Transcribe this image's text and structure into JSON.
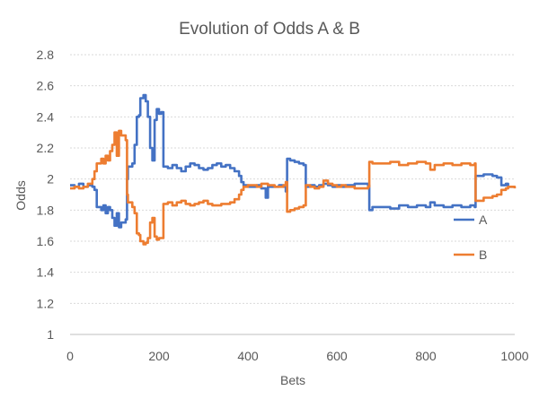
{
  "chart_data": {
    "type": "line",
    "title": "Evolution of Odds A & B",
    "xlabel": "Bets",
    "ylabel": "Odds",
    "xlim": [
      0,
      1000
    ],
    "ylim": [
      1,
      2.8
    ],
    "x_ticks": [
      "0",
      "200",
      "400",
      "600",
      "800",
      "1000"
    ],
    "y_ticks": [
      "1",
      "1.2",
      "1.4",
      "1.6",
      "1.8",
      "2",
      "2.2",
      "2.4",
      "2.6",
      "2.8"
    ],
    "grid": "horizontal dotted",
    "legend_position": "right",
    "series": [
      {
        "name": "A",
        "color": "#4472C4",
        "points": [
          [
            0,
            1.96
          ],
          [
            10,
            1.95
          ],
          [
            20,
            1.97
          ],
          [
            30,
            1.95
          ],
          [
            40,
            1.96
          ],
          [
            50,
            1.95
          ],
          [
            55,
            1.93
          ],
          [
            60,
            1.82
          ],
          [
            70,
            1.8
          ],
          [
            75,
            1.83
          ],
          [
            80,
            1.78
          ],
          [
            85,
            1.82
          ],
          [
            90,
            1.8
          ],
          [
            95,
            1.75
          ],
          [
            100,
            1.7
          ],
          [
            105,
            1.78
          ],
          [
            110,
            1.69
          ],
          [
            115,
            1.72
          ],
          [
            120,
            1.72
          ],
          [
            125,
            1.74
          ],
          [
            128,
            2.0
          ],
          [
            130,
            2.08
          ],
          [
            140,
            2.1
          ],
          [
            145,
            2.22
          ],
          [
            150,
            2.4
          ],
          [
            155,
            2.41
          ],
          [
            158,
            2.52
          ],
          [
            165,
            2.54
          ],
          [
            170,
            2.5
          ],
          [
            175,
            2.4
          ],
          [
            180,
            2.2
          ],
          [
            185,
            2.12
          ],
          [
            190,
            2.38
          ],
          [
            195,
            2.45
          ],
          [
            200,
            2.42
          ],
          [
            205,
            2.43
          ],
          [
            210,
            2.08
          ],
          [
            220,
            2.07
          ],
          [
            230,
            2.09
          ],
          [
            240,
            2.07
          ],
          [
            250,
            2.05
          ],
          [
            260,
            2.08
          ],
          [
            270,
            2.1
          ],
          [
            280,
            2.09
          ],
          [
            290,
            2.07
          ],
          [
            300,
            2.06
          ],
          [
            310,
            2.07
          ],
          [
            320,
            2.09
          ],
          [
            330,
            2.1
          ],
          [
            340,
            2.08
          ],
          [
            350,
            2.09
          ],
          [
            360,
            2.07
          ],
          [
            370,
            2.05
          ],
          [
            380,
            2.02
          ],
          [
            385,
            1.98
          ],
          [
            390,
            1.96
          ],
          [
            400,
            1.95
          ],
          [
            410,
            1.95
          ],
          [
            420,
            1.96
          ],
          [
            430,
            1.94
          ],
          [
            440,
            1.88
          ],
          [
            445,
            1.95
          ],
          [
            460,
            1.95
          ],
          [
            470,
            1.96
          ],
          [
            480,
            1.95
          ],
          [
            485,
            1.92
          ],
          [
            488,
            2.13
          ],
          [
            495,
            2.12
          ],
          [
            505,
            2.11
          ],
          [
            515,
            2.1
          ],
          [
            525,
            2.09
          ],
          [
            530,
            1.95
          ],
          [
            540,
            1.96
          ],
          [
            550,
            1.95
          ],
          [
            560,
            1.96
          ],
          [
            570,
            1.97
          ],
          [
            580,
            1.96
          ],
          [
            590,
            1.95
          ],
          [
            600,
            1.96
          ],
          [
            610,
            1.95
          ],
          [
            620,
            1.96
          ],
          [
            640,
            1.97
          ],
          [
            660,
            1.97
          ],
          [
            670,
            1.96
          ],
          [
            673,
            1.8
          ],
          [
            680,
            1.82
          ],
          [
            700,
            1.82
          ],
          [
            720,
            1.81
          ],
          [
            740,
            1.83
          ],
          [
            760,
            1.82
          ],
          [
            780,
            1.83
          ],
          [
            800,
            1.82
          ],
          [
            810,
            1.85
          ],
          [
            820,
            1.83
          ],
          [
            840,
            1.82
          ],
          [
            860,
            1.83
          ],
          [
            880,
            1.82
          ],
          [
            900,
            1.83
          ],
          [
            910,
            1.82
          ],
          [
            912,
            2.02
          ],
          [
            930,
            2.03
          ],
          [
            950,
            2.02
          ],
          [
            960,
            2.01
          ],
          [
            970,
            1.96
          ],
          [
            980,
            1.97
          ],
          [
            985,
            1.95
          ],
          [
            1000,
            1.95
          ]
        ]
      },
      {
        "name": "B",
        "color": "#ED7D31",
        "points": [
          [
            0,
            1.94
          ],
          [
            10,
            1.95
          ],
          [
            20,
            1.94
          ],
          [
            30,
            1.95
          ],
          [
            40,
            1.97
          ],
          [
            50,
            2.0
          ],
          [
            55,
            2.05
          ],
          [
            60,
            2.1
          ],
          [
            70,
            2.13
          ],
          [
            75,
            2.1
          ],
          [
            80,
            2.15
          ],
          [
            85,
            2.12
          ],
          [
            90,
            2.18
          ],
          [
            95,
            2.22
          ],
          [
            100,
            2.3
          ],
          [
            105,
            2.15
          ],
          [
            110,
            2.31
          ],
          [
            115,
            2.28
          ],
          [
            120,
            2.28
          ],
          [
            125,
            2.25
          ],
          [
            128,
            1.9
          ],
          [
            130,
            1.85
          ],
          [
            140,
            1.82
          ],
          [
            145,
            1.78
          ],
          [
            150,
            1.65
          ],
          [
            155,
            1.64
          ],
          [
            158,
            1.6
          ],
          [
            165,
            1.58
          ],
          [
            170,
            1.59
          ],
          [
            175,
            1.62
          ],
          [
            180,
            1.72
          ],
          [
            185,
            1.75
          ],
          [
            190,
            1.63
          ],
          [
            195,
            1.61
          ],
          [
            200,
            1.62
          ],
          [
            205,
            1.62
          ],
          [
            210,
            1.84
          ],
          [
            220,
            1.85
          ],
          [
            230,
            1.83
          ],
          [
            240,
            1.85
          ],
          [
            250,
            1.86
          ],
          [
            260,
            1.84
          ],
          [
            270,
            1.83
          ],
          [
            280,
            1.84
          ],
          [
            290,
            1.85
          ],
          [
            300,
            1.86
          ],
          [
            310,
            1.84
          ],
          [
            320,
            1.83
          ],
          [
            330,
            1.83
          ],
          [
            340,
            1.84
          ],
          [
            350,
            1.84
          ],
          [
            360,
            1.85
          ],
          [
            370,
            1.87
          ],
          [
            380,
            1.9
          ],
          [
            385,
            1.93
          ],
          [
            390,
            1.95
          ],
          [
            400,
            1.96
          ],
          [
            410,
            1.96
          ],
          [
            420,
            1.95
          ],
          [
            430,
            1.97
          ],
          [
            440,
            1.97
          ],
          [
            445,
            1.96
          ],
          [
            460,
            1.95
          ],
          [
            470,
            1.95
          ],
          [
            480,
            1.96
          ],
          [
            485,
            1.98
          ],
          [
            488,
            1.79
          ],
          [
            495,
            1.8
          ],
          [
            505,
            1.81
          ],
          [
            515,
            1.82
          ],
          [
            525,
            1.83
          ],
          [
            530,
            1.96
          ],
          [
            540,
            1.95
          ],
          [
            550,
            1.94
          ],
          [
            560,
            1.95
          ],
          [
            570,
            1.99
          ],
          [
            580,
            1.97
          ],
          [
            590,
            1.96
          ],
          [
            600,
            1.95
          ],
          [
            610,
            1.96
          ],
          [
            620,
            1.95
          ],
          [
            640,
            1.94
          ],
          [
            660,
            1.94
          ],
          [
            670,
            1.95
          ],
          [
            673,
            2.11
          ],
          [
            680,
            2.1
          ],
          [
            700,
            2.1
          ],
          [
            720,
            2.11
          ],
          [
            740,
            2.09
          ],
          [
            760,
            2.1
          ],
          [
            780,
            2.11
          ],
          [
            800,
            2.1
          ],
          [
            810,
            2.06
          ],
          [
            820,
            2.09
          ],
          [
            840,
            2.1
          ],
          [
            860,
            2.09
          ],
          [
            880,
            2.1
          ],
          [
            900,
            2.09
          ],
          [
            910,
            2.1
          ],
          [
            912,
            1.86
          ],
          [
            930,
            1.88
          ],
          [
            950,
            1.89
          ],
          [
            960,
            1.9
          ],
          [
            970,
            1.93
          ],
          [
            980,
            1.94
          ],
          [
            985,
            1.95
          ],
          [
            1000,
            1.94
          ]
        ]
      }
    ]
  }
}
